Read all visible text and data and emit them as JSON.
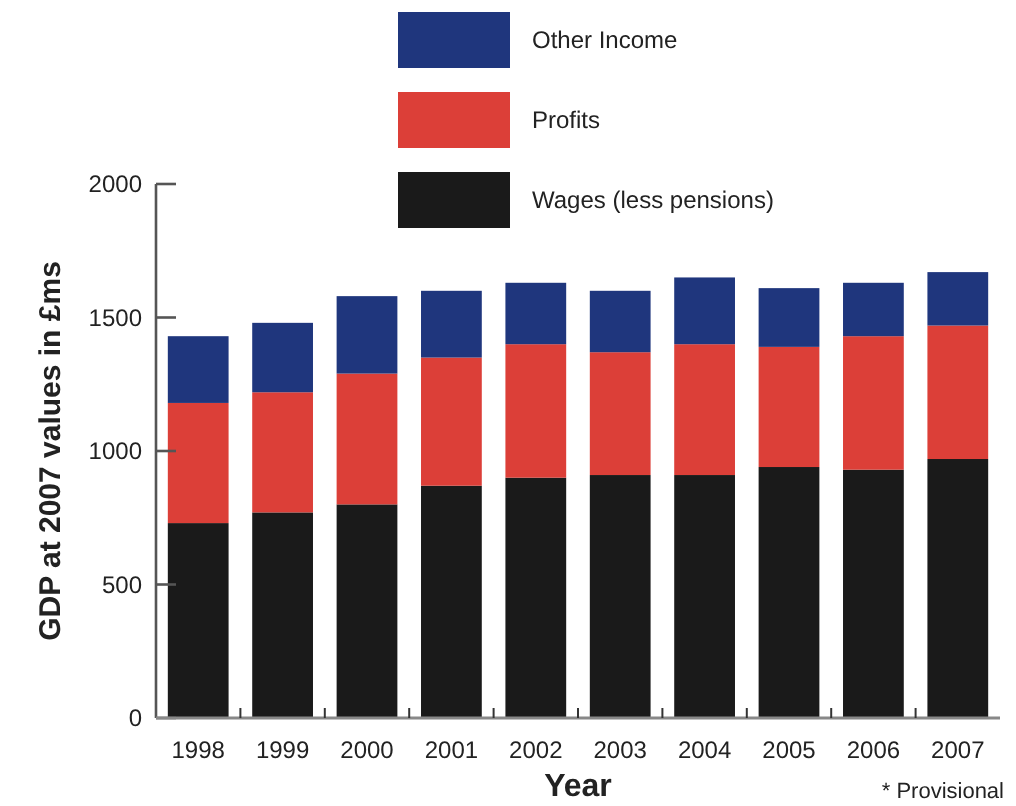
{
  "chart_data": {
    "type": "bar",
    "stacked": true,
    "xlabel": "Year",
    "ylabel": "GDP at 2007 values in £ms",
    "categories": [
      "1998",
      "1999",
      "2000",
      "2001",
      "2002",
      "2003",
      "2004",
      "2005",
      "2006",
      "2007"
    ],
    "series": [
      {
        "name": "Wages (less pensions)",
        "color": "#1a1a1a",
        "values": [
          730,
          770,
          800,
          870,
          900,
          910,
          910,
          940,
          930,
          970
        ]
      },
      {
        "name": "Profits",
        "color": "#dc3f38",
        "values": [
          450,
          450,
          490,
          480,
          500,
          460,
          490,
          450,
          500,
          500
        ]
      },
      {
        "name": "Other Income",
        "color": "#1f367d",
        "values": [
          250,
          260,
          290,
          250,
          230,
          230,
          250,
          220,
          200,
          200
        ]
      }
    ],
    "ylim": [
      0,
      2000
    ],
    "yticks": [
      0,
      500,
      1000,
      1500,
      2000
    ],
    "grid": false,
    "legend": "top",
    "annotations": [
      "* Provisional"
    ]
  }
}
